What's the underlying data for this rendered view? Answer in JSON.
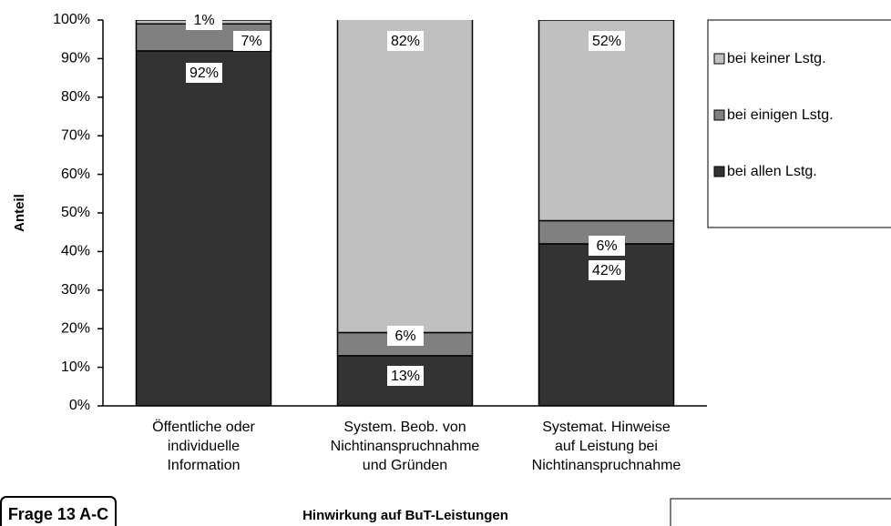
{
  "chart_data": {
    "type": "stacked_bar",
    "x_label": "Hinwirkung auf BuT-Leistungen",
    "y_label": "Anteil",
    "corner_note": "Frage 13 A-C",
    "categories": [
      [
        "Öffentliche oder",
        "individuelle",
        "Information"
      ],
      [
        "System. Beob. von",
        "Nichtinanspruchnahme",
        "und Gründen"
      ],
      [
        "Systemat. Hinweise",
        "auf Leistung bei",
        "Nichtinanspruchnahme"
      ]
    ],
    "series": [
      {
        "name": "bei allen Lstg.",
        "color": "#333333",
        "values": [
          92,
          13,
          42
        ],
        "value_labels": [
          "92%",
          "13%",
          "42%"
        ]
      },
      {
        "name": "bei einigen Lstg.",
        "color": "#808080",
        "values": [
          7,
          6,
          6
        ],
        "value_labels": [
          "7%",
          "6%",
          "6%"
        ]
      },
      {
        "name": "bei keiner Lstg.",
        "color": "#c0c0c0",
        "values": [
          1,
          82,
          52
        ],
        "value_labels": [
          "1%",
          "82%",
          "52%"
        ]
      }
    ],
    "ylim": [
      0,
      100
    ],
    "yticks": [
      {
        "value": 0,
        "label": "0%"
      },
      {
        "value": 10,
        "label": "10%"
      },
      {
        "value": 20,
        "label": "20%"
      },
      {
        "value": 30,
        "label": "30%"
      },
      {
        "value": 40,
        "label": "40%"
      },
      {
        "value": 50,
        "label": "50%"
      },
      {
        "value": 60,
        "label": "60%"
      },
      {
        "value": 70,
        "label": "70%"
      },
      {
        "value": 80,
        "label": "80%"
      },
      {
        "value": 90,
        "label": "90%"
      },
      {
        "value": 100,
        "label": "100%"
      }
    ],
    "legend": "right"
  }
}
